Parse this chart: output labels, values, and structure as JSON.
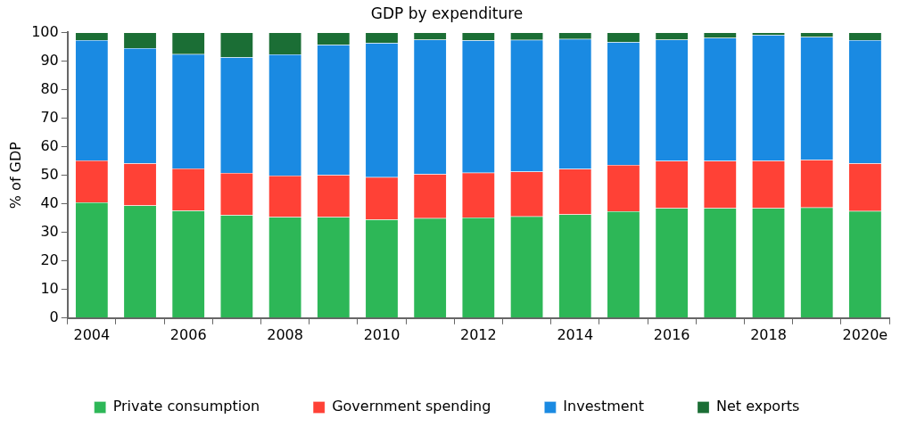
{
  "chart_data": {
    "type": "bar",
    "title": "GDP by expenditure",
    "ylabel": "% of GDP",
    "stacked": true,
    "categories": [
      "2004",
      null,
      "2006",
      null,
      "2008",
      null,
      "2010",
      null,
      "2012",
      null,
      "2014",
      null,
      "2016",
      null,
      "2018",
      null,
      "2020e"
    ],
    "series": [
      {
        "name": "Private consumption",
        "color": "#2db757",
        "values": [
          40.5,
          39.4,
          37.6,
          36.1,
          35.4,
          35.4,
          34.5,
          35.0,
          35.2,
          35.6,
          36.3,
          37.4,
          38.5,
          38.5,
          38.5,
          38.7,
          37.5
        ]
      },
      {
        "name": "Government spending",
        "color": "#ff4136",
        "values": [
          14.7,
          14.8,
          14.8,
          14.7,
          14.5,
          14.7,
          14.8,
          15.4,
          15.7,
          15.7,
          15.9,
          16.2,
          16.5,
          16.5,
          16.6,
          16.7,
          16.7
        ]
      },
      {
        "name": "Investment",
        "color": "#1a8ae2",
        "values": [
          42.1,
          40.3,
          40.0,
          40.5,
          42.4,
          45.6,
          47.0,
          47.1,
          46.3,
          46.1,
          45.5,
          43.0,
          42.5,
          43.1,
          44.0,
          43.0,
          43.1
        ]
      },
      {
        "name": "Net exports",
        "color": "#1b6e35",
        "values": [
          2.7,
          5.5,
          7.6,
          8.7,
          7.7,
          4.3,
          3.7,
          2.5,
          2.8,
          2.6,
          2.3,
          3.4,
          2.5,
          1.9,
          0.9,
          1.6,
          2.7
        ]
      }
    ],
    "ylim": [
      0,
      100
    ],
    "yticks": [
      0,
      10,
      20,
      30,
      40,
      50,
      60,
      70,
      80,
      90,
      100
    ],
    "grid": false,
    "legend": "bottom"
  }
}
